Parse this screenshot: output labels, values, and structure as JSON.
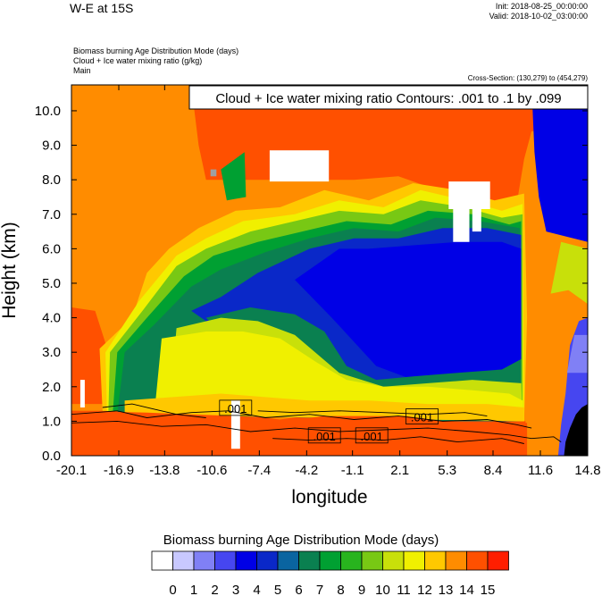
{
  "header": {
    "title": "W-E at 15S",
    "init": "Init: 2018-08-25_00:00:00",
    "valid": "Valid: 2018-10-02_03:00:00",
    "variables": [
      "Biomass burning Age Distribution Mode   (days)",
      "Cloud + Ice water mixing ratio   (g/kg)",
      "Main"
    ],
    "cross_section": "Cross-Section: (130,279) to (454,279)",
    "contour_box": "Cloud + Ice water mixing ratio Contours: .001 to .1 by .099"
  },
  "chart_data": {
    "type": "heatmap",
    "xlabel": "longitude",
    "ylabel": "Height (km)",
    "xlim": [
      -20.1,
      14.8
    ],
    "ylim": [
      0.0,
      10.75
    ],
    "x_ticks": [
      "-20.1",
      "-16.9",
      "-13.8",
      "-10.6",
      "-7.4",
      "-4.2",
      "-1.1",
      "2.1",
      "5.3",
      "8.4",
      "11.6",
      "14.8"
    ],
    "y_ticks": [
      "0.0",
      "1.0",
      "2.0",
      "3.0",
      "4.0",
      "5.0",
      "6.0",
      "7.0",
      "8.0",
      "9.0",
      "10.0"
    ],
    "contour_labels": [
      {
        "text": ".001",
        "lon": -9.0,
        "height": 1.35
      },
      {
        "text": ".001",
        "lon": -3.0,
        "height": 0.55
      },
      {
        "text": ".001",
        "lon": 0.2,
        "height": 0.55
      },
      {
        "text": ".001",
        "lon": 3.6,
        "height": 1.1
      }
    ],
    "colorbar": {
      "title": "Biomass burning Age Distribution Mode  (days)",
      "labels": [
        "0",
        "1",
        "2",
        "3",
        "4",
        "5",
        "6",
        "7",
        "8",
        "9",
        "10",
        "11",
        "12",
        "13",
        "14",
        "15"
      ],
      "colors": [
        "#ffffff",
        "#c8c8ff",
        "#8080f5",
        "#4646f0",
        "#0000e6",
        "#0a28c8",
        "#0a64a0",
        "#0a8050",
        "#00a032",
        "#28b41e",
        "#78c814",
        "#c8e00a",
        "#f0f000",
        "#ffc800",
        "#ff8c00",
        "#ff5000",
        "#ff1e00"
      ]
    }
  }
}
